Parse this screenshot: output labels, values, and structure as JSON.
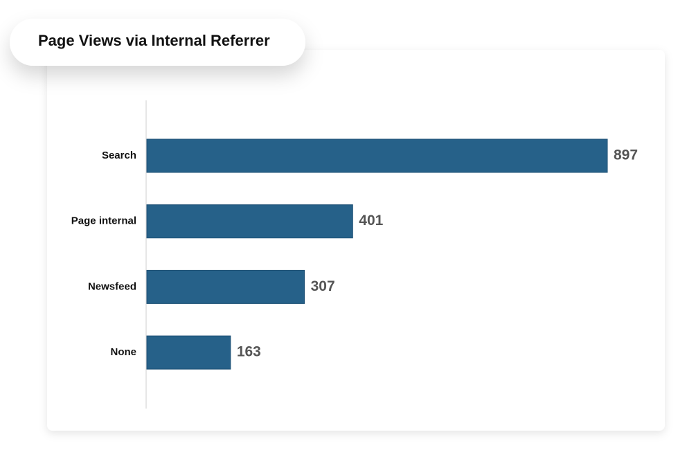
{
  "chart_data": {
    "type": "bar",
    "orientation": "horizontal",
    "title": "Page Views via Internal Referrer",
    "categories": [
      "Search",
      "Page internal",
      "Newsfeed",
      "None"
    ],
    "values": [
      897,
      401,
      307,
      163
    ],
    "color": "#266189"
  }
}
